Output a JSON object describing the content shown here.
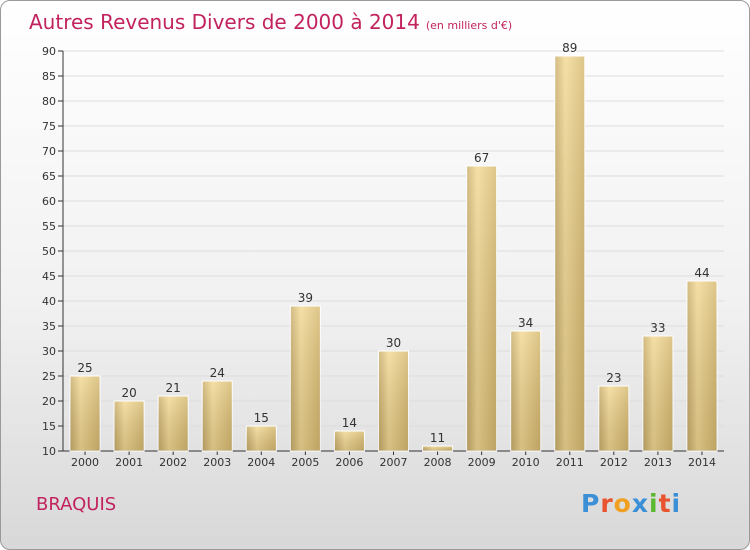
{
  "header": {
    "title": "Autres Revenus Divers de 2000 à 2014",
    "unit": "(en milliers d'€)"
  },
  "footer": {
    "commune": "BRAQUIS",
    "logo_text": "Proxiti"
  },
  "colors": {
    "title": "#c2235e",
    "bar_light": "#f4d992",
    "bar_dark": "#c4a866",
    "logo": [
      "#3a8fd6",
      "#e8542f",
      "#f0a020",
      "#3a8fd6",
      "#5cb830",
      "#e8542f",
      "#3a8fd6"
    ]
  },
  "chart_data": {
    "type": "bar",
    "title": "Autres Revenus Divers de 2000 à 2014",
    "unit": "(en milliers d'€)",
    "categories": [
      "2000",
      "2001",
      "2002",
      "2003",
      "2004",
      "2005",
      "2006",
      "2007",
      "2008",
      "2009",
      "2010",
      "2011",
      "2012",
      "2013",
      "2014"
    ],
    "values": [
      25,
      20,
      21,
      24,
      15,
      39,
      14,
      30,
      11,
      67,
      34,
      89,
      23,
      33,
      44
    ],
    "ylim": [
      10,
      90
    ],
    "yticks": [
      10,
      15,
      20,
      25,
      30,
      35,
      40,
      45,
      50,
      55,
      60,
      65,
      70,
      75,
      80,
      85,
      90
    ],
    "grid": true,
    "legend": "none"
  }
}
